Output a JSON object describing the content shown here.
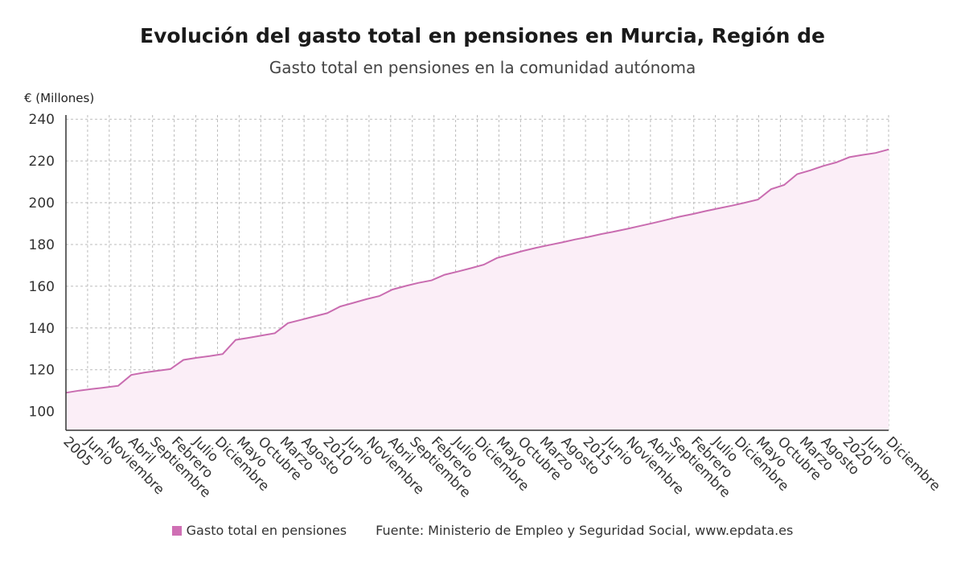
{
  "header": {
    "title": "Evolución del gasto total en pensiones en Murcia, Región de",
    "subtitle": "Gasto total en pensiones en la comunidad autónoma"
  },
  "footer": {
    "legend_label": "Gasto total en pensiones",
    "source": "Fuente: Ministerio de Empleo y Seguridad Social, www.epdata.es"
  },
  "colors": {
    "line": "#c96cb0",
    "fill": "#fbeef7",
    "grid": "#bbbbbb",
    "axis": "#333333",
    "swatch": "#cf6fb4"
  },
  "chart_data": {
    "type": "area",
    "title": "Evolución del gasto total en pensiones en Murcia, Región de",
    "subtitle": "Gasto total en pensiones en la comunidad autónoma",
    "ylabel": "€ (Millones)",
    "ylim": [
      91,
      242
    ],
    "yticks": [
      100,
      120,
      140,
      160,
      180,
      200,
      220,
      240
    ],
    "grid": true,
    "legend_position": "bottom",
    "x_ticks": [
      "2005",
      "Junio",
      "Noviembre",
      "Abril",
      "Septiembre",
      "Febrero",
      "Julio",
      "Diciembre",
      "Mayo",
      "Octubre",
      "Marzo",
      "Agosto",
      "2010",
      "Junio",
      "Noviembre",
      "Abril",
      "Septiembre",
      "Febrero",
      "Julio",
      "Diciembre",
      "Mayo",
      "Octubre",
      "Marzo",
      "Agosto",
      "2015",
      "Junio",
      "Noviembre",
      "Abril",
      "Septiembre",
      "Febrero",
      "Julio",
      "Diciembre",
      "Mayo",
      "Octubre",
      "Marzo",
      "Agosto",
      "2020",
      "Junio",
      "Diciembre"
    ],
    "series": [
      {
        "name": "Gasto total en pensiones",
        "x_start": "2005-01",
        "x_end": "2020-12",
        "values": [
          109.0,
          110.0,
          110.8,
          111.5,
          112.3,
          117.5,
          118.6,
          119.5,
          120.3,
          124.7,
          125.7,
          126.5,
          127.5,
          134.3,
          135.3,
          136.4,
          137.5,
          142.3,
          143.9,
          145.5,
          147.1,
          150.3,
          152.0,
          153.8,
          155.3,
          158.4,
          160.1,
          161.6,
          162.8,
          165.5,
          167.0,
          168.6,
          170.3,
          173.5,
          175.2,
          176.9,
          178.4,
          179.7,
          181.0,
          182.4,
          183.6,
          185.0,
          186.2,
          187.5,
          188.9,
          190.3,
          191.8,
          193.3,
          194.6,
          196.0,
          197.3,
          198.6,
          200.0,
          201.5,
          206.5,
          208.5,
          213.7,
          215.5,
          217.6,
          219.3,
          221.8,
          222.9,
          223.8,
          225.5
        ]
      }
    ]
  }
}
